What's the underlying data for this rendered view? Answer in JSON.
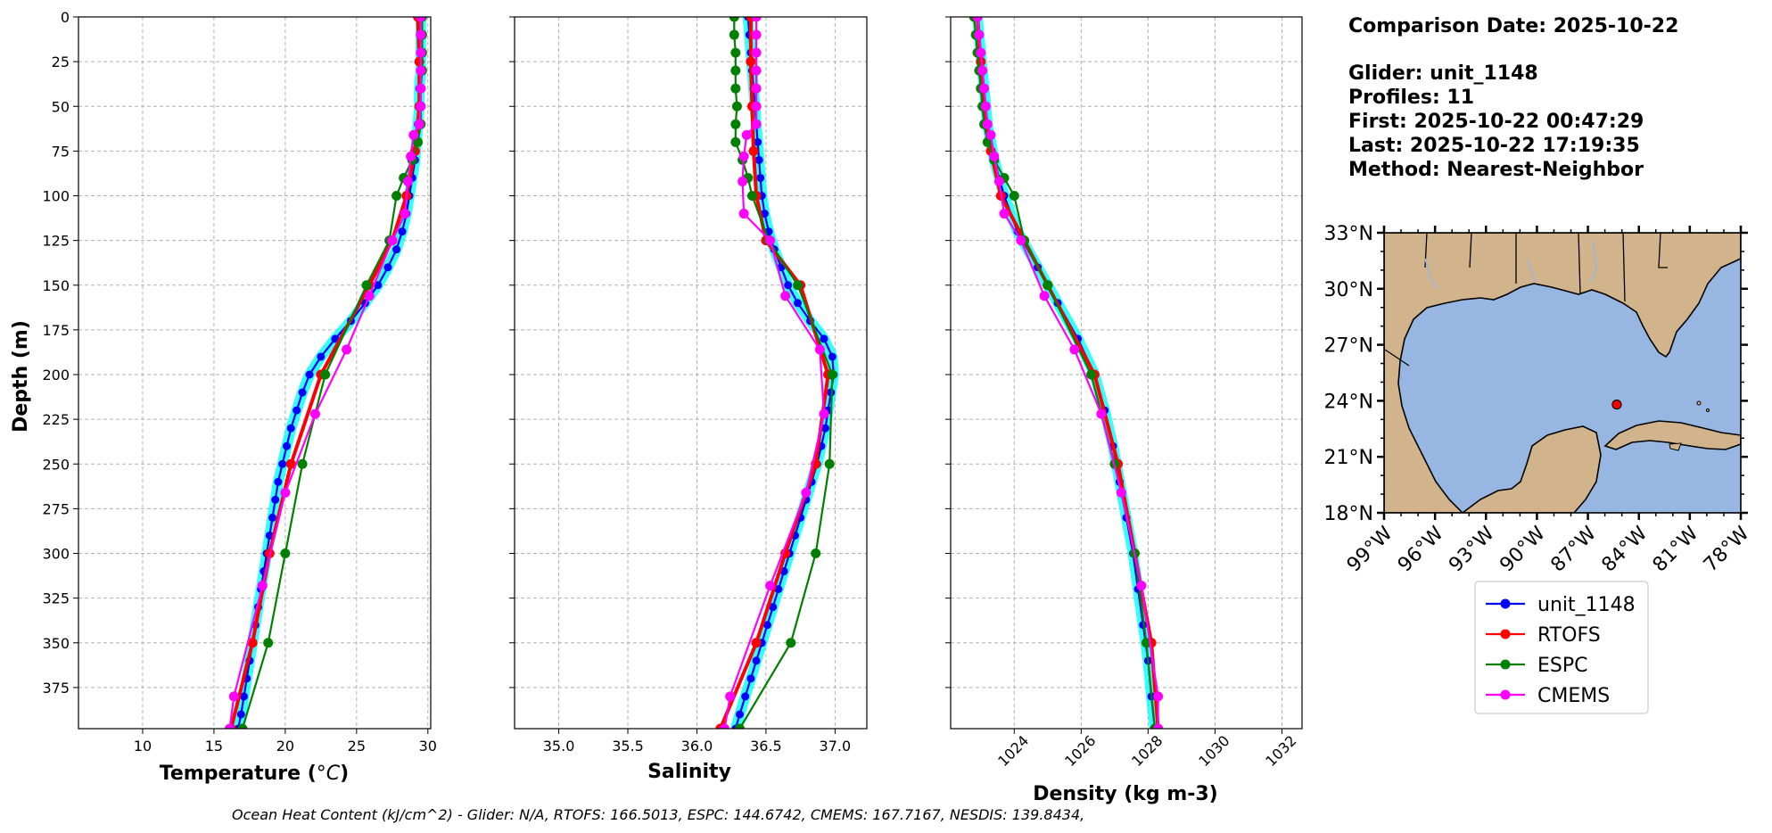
{
  "chart_data": [
    {
      "type": "line",
      "xlabel": "Temperature (",
      "xlabel_unit": "°C",
      "xlabel_close": ")",
      "ylabel": "Depth (m)",
      "xlim": [
        5.5,
        30.2
      ],
      "ylim": [
        398,
        0
      ],
      "xticks": [
        10,
        15,
        20,
        25,
        30
      ],
      "yticks": [
        0,
        25,
        50,
        75,
        100,
        125,
        150,
        175,
        200,
        225,
        250,
        275,
        300,
        325,
        350,
        375
      ],
      "grid": true,
      "series": [
        {
          "name": "unit_1148",
          "color": "#0000ff",
          "depth": [
            0,
            10,
            20,
            30,
            40,
            50,
            60,
            70,
            80,
            90,
            100,
            110,
            120,
            130,
            140,
            150,
            160,
            170,
            180,
            190,
            200,
            210,
            220,
            230,
            240,
            250,
            260,
            270,
            280,
            290,
            300,
            310,
            320,
            330,
            340,
            350,
            360,
            370,
            380,
            390,
            398
          ],
          "values": [
            29.5,
            29.5,
            29.5,
            29.5,
            29.4,
            29.4,
            29.3,
            29.2,
            29.1,
            28.9,
            28.7,
            28.5,
            28.2,
            27.8,
            27.2,
            26.5,
            25.6,
            24.6,
            23.5,
            22.5,
            21.7,
            21.2,
            20.8,
            20.4,
            20.1,
            19.8,
            19.5,
            19.3,
            19.1,
            18.9,
            18.7,
            18.5,
            18.3,
            18.1,
            17.9,
            17.7,
            17.5,
            17.3,
            17.1,
            16.9,
            16.7
          ]
        },
        {
          "name": "RTOFS",
          "color": "#ff0000",
          "depth": [
            0,
            25,
            50,
            75,
            100,
            125,
            150,
            200,
            250,
            300,
            350,
            398
          ],
          "values": [
            29.3,
            29.4,
            29.4,
            29.1,
            28.5,
            27.5,
            25.9,
            22.5,
            20.4,
            18.9,
            17.7,
            16.2
          ]
        },
        {
          "name": "ESPC",
          "color": "#008000",
          "depth": [
            0,
            10,
            20,
            30,
            40,
            50,
            60,
            70,
            80,
            90,
            100,
            125,
            150,
            200,
            250,
            300,
            350,
            398
          ],
          "values": [
            29.6,
            29.6,
            29.6,
            29.6,
            29.5,
            29.5,
            29.5,
            29.3,
            28.9,
            28.3,
            27.8,
            27.3,
            25.7,
            22.8,
            21.2,
            20.0,
            18.8,
            17.0
          ]
        },
        {
          "name": "CMEMS",
          "color": "#ff00ff",
          "depth": [
            0,
            10,
            20,
            30,
            40,
            50,
            60,
            66,
            78,
            92,
            110,
            125,
            156,
            186,
            222,
            266,
            318,
            380,
            398
          ],
          "values": [
            29.5,
            29.5,
            29.5,
            29.5,
            29.5,
            29.5,
            29.4,
            29.0,
            28.8,
            28.6,
            28.4,
            27.5,
            25.9,
            24.3,
            22.1,
            20.0,
            18.4,
            16.4,
            16.1
          ]
        }
      ]
    },
    {
      "type": "line",
      "xlabel": "Salinity",
      "xlim": [
        34.68,
        37.23
      ],
      "ylim": [
        398,
        0
      ],
      "xticks": [
        35.0,
        35.5,
        36.0,
        36.5,
        37.0
      ],
      "xtick_labels": [
        "35.0",
        "35.5",
        "36.0",
        "36.5",
        "37.0"
      ],
      "grid": true,
      "series": [
        {
          "name": "unit_1148",
          "color": "#0000ff",
          "depth": [
            0,
            10,
            20,
            30,
            40,
            50,
            60,
            70,
            80,
            90,
            100,
            110,
            120,
            130,
            140,
            150,
            160,
            170,
            180,
            190,
            200,
            210,
            220,
            230,
            240,
            250,
            260,
            270,
            280,
            290,
            300,
            310,
            320,
            330,
            340,
            350,
            360,
            370,
            380,
            390,
            398
          ],
          "values": [
            36.37,
            36.38,
            36.39,
            36.4,
            36.41,
            36.42,
            36.43,
            36.44,
            36.45,
            36.46,
            36.47,
            36.49,
            36.52,
            36.56,
            36.61,
            36.66,
            36.73,
            36.82,
            36.92,
            36.98,
            36.99,
            36.97,
            36.95,
            36.93,
            36.9,
            36.87,
            36.83,
            36.79,
            36.75,
            36.71,
            36.67,
            36.63,
            36.59,
            36.55,
            36.51,
            36.47,
            36.43,
            36.39,
            36.35,
            36.31,
            36.28
          ]
        },
        {
          "name": "RTOFS",
          "color": "#ff0000",
          "depth": [
            0,
            25,
            50,
            75,
            100,
            125,
            150,
            200,
            250,
            300,
            350,
            398
          ],
          "values": [
            36.39,
            36.39,
            36.4,
            36.41,
            36.43,
            36.5,
            36.75,
            36.95,
            36.86,
            36.64,
            36.43,
            36.17
          ]
        },
        {
          "name": "ESPC",
          "color": "#008000",
          "depth": [
            0,
            10,
            20,
            30,
            40,
            50,
            60,
            70,
            80,
            90,
            100,
            125,
            150,
            200,
            250,
            300,
            350,
            398
          ],
          "values": [
            36.27,
            36.27,
            36.28,
            36.28,
            36.28,
            36.29,
            36.28,
            36.28,
            36.33,
            36.37,
            36.4,
            36.52,
            36.73,
            36.98,
            36.96,
            36.86,
            36.68,
            36.31
          ]
        },
        {
          "name": "CMEMS",
          "color": "#ff00ff",
          "depth": [
            0,
            10,
            20,
            30,
            40,
            50,
            60,
            66,
            78,
            92,
            110,
            125,
            156,
            186,
            222,
            266,
            318,
            380,
            398
          ],
          "values": [
            36.43,
            36.43,
            36.43,
            36.43,
            36.43,
            36.43,
            36.43,
            36.36,
            36.34,
            36.33,
            36.34,
            36.53,
            36.64,
            36.89,
            36.92,
            36.79,
            36.53,
            36.24,
            36.2
          ]
        }
      ]
    },
    {
      "type": "line",
      "xlabel": "Density (kg m-3)",
      "xlim": [
        1022.1,
        1032.6
      ],
      "ylim": [
        398,
        0
      ],
      "xticks": [
        1024,
        1026,
        1028,
        1030,
        1032
      ],
      "grid": true,
      "series": [
        {
          "name": "unit_1148",
          "color": "#0000ff",
          "depth": [
            0,
            20,
            40,
            60,
            80,
            100,
            120,
            140,
            160,
            180,
            200,
            220,
            240,
            260,
            280,
            300,
            320,
            340,
            360,
            380,
            398
          ],
          "values": [
            1022.9,
            1023.0,
            1023.1,
            1023.2,
            1023.4,
            1023.7,
            1024.1,
            1024.7,
            1025.3,
            1025.9,
            1026.4,
            1026.7,
            1026.95,
            1027.15,
            1027.35,
            1027.55,
            1027.7,
            1027.85,
            1028.0,
            1028.1,
            1028.2
          ]
        },
        {
          "name": "RTOFS",
          "color": "#ff0000",
          "depth": [
            0,
            25,
            50,
            75,
            100,
            125,
            150,
            200,
            250,
            300,
            350,
            398
          ],
          "values": [
            1022.9,
            1023.0,
            1023.1,
            1023.3,
            1023.6,
            1024.3,
            1025.0,
            1026.4,
            1027.1,
            1027.6,
            1028.1,
            1028.3
          ]
        },
        {
          "name": "ESPC",
          "color": "#008000",
          "depth": [
            0,
            10,
            20,
            30,
            40,
            50,
            60,
            70,
            80,
            90,
            100,
            125,
            150,
            200,
            250,
            300,
            350,
            398
          ],
          "values": [
            1022.8,
            1022.85,
            1022.9,
            1022.95,
            1023.0,
            1023.05,
            1023.1,
            1023.2,
            1023.4,
            1023.7,
            1024.0,
            1024.3,
            1025.0,
            1026.3,
            1027.0,
            1027.6,
            1027.95,
            1028.2
          ]
        },
        {
          "name": "CMEMS",
          "color": "#ff00ff",
          "depth": [
            0,
            10,
            20,
            30,
            40,
            50,
            60,
            66,
            78,
            92,
            110,
            125,
            156,
            186,
            222,
            266,
            318,
            380,
            398
          ],
          "values": [
            1022.9,
            1022.95,
            1023.0,
            1023.05,
            1023.1,
            1023.15,
            1023.2,
            1023.3,
            1023.4,
            1023.55,
            1023.7,
            1024.2,
            1024.9,
            1025.8,
            1026.6,
            1027.2,
            1027.8,
            1028.3,
            1028.3
          ]
        }
      ]
    }
  ],
  "info": {
    "lines": [
      "Comparison Date: 2025-10-22",
      "",
      "Glider: unit_1148",
      "Profiles: 11",
      "First: 2025-10-22 00:47:29",
      "Last: 2025-10-22 17:19:35",
      "Method: Nearest-Neighbor"
    ]
  },
  "map": {
    "lat_ticks": [
      "33°N",
      "30°N",
      "27°N",
      "24°N",
      "21°N",
      "18°N"
    ],
    "lon_ticks": [
      "99°W",
      "96°W",
      "93°W",
      "90°W",
      "87°W",
      "84°W",
      "81°W",
      "78°W"
    ],
    "land_color": "#d2b48c",
    "ocean_color": "#97b6e1",
    "marker": {
      "lon": -85.3,
      "lat": 23.8,
      "color": "#ff0000"
    }
  },
  "legend": {
    "entries": [
      {
        "label": "unit_1148",
        "color": "#0000ff"
      },
      {
        "label": "RTOFS",
        "color": "#ff0000"
      },
      {
        "label": "ESPC",
        "color": "#008000"
      },
      {
        "label": "CMEMS",
        "color": "#ff00ff"
      }
    ]
  },
  "footer": "Ocean Heat Content (kJ/cm^2) - Glider: N/A,  RTOFS: 166.5013,  ESPC: 144.6742,  CMEMS: 167.7167,  NESDIS: 139.8434,"
}
